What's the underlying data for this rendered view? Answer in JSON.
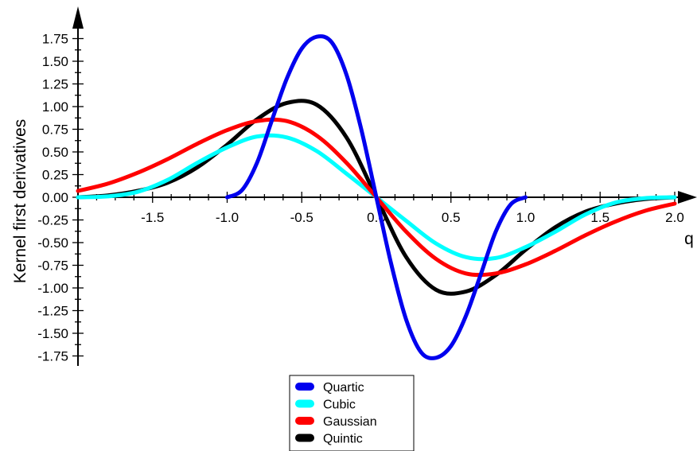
{
  "chart_data": {
    "type": "line",
    "xlabel": "q",
    "ylabel": "Kernel first derivatives",
    "xlim": [
      -2.0,
      2.0
    ],
    "ylim": [
      -1.75,
      1.75
    ],
    "x_tick_labels": [
      "-1.5",
      "-1.0",
      "-0.5",
      "0.0",
      "0.5",
      "1.0",
      "1.5",
      "2.0"
    ],
    "x_tick_values": [
      -1.5,
      -1.0,
      -0.5,
      0.0,
      0.5,
      1.0,
      1.5,
      2.0
    ],
    "y_tick_labels": [
      "1.75",
      "1.50",
      "1.25",
      "1.00",
      "0.75",
      "0.50",
      "0.25",
      "0.00",
      "-0.25",
      "-0.50",
      "-0.75",
      "-1.00",
      "-1.25",
      "-1.50",
      "-1.75"
    ],
    "y_tick_values": [
      1.75,
      1.5,
      1.25,
      1.0,
      0.75,
      0.5,
      0.25,
      0.0,
      -0.25,
      -0.5,
      -0.75,
      -1.0,
      -1.25,
      -1.5,
      -1.75
    ],
    "legend_position": "bottom-center",
    "grid": false,
    "series": [
      {
        "name": "Quartic",
        "color": "#0000ee",
        "x": [
          -1.0,
          -0.9,
          -0.8,
          -0.7,
          -0.6,
          -0.5,
          -0.4,
          -0.3,
          -0.2,
          -0.1,
          0.0,
          0.1,
          0.2,
          0.3,
          0.4,
          0.5,
          0.6,
          0.7,
          0.8,
          0.9,
          1.0
        ],
        "y": [
          0.0,
          0.08,
          0.38,
          0.85,
          1.31,
          1.64,
          1.77,
          1.71,
          1.35,
          0.74,
          0.0,
          -0.74,
          -1.35,
          -1.71,
          -1.77,
          -1.64,
          -1.31,
          -0.85,
          -0.38,
          -0.08,
          0.0
        ]
      },
      {
        "name": "Cubic",
        "color": "#00ffff",
        "x": [
          -2.0,
          -1.8,
          -1.6,
          -1.4,
          -1.2,
          -1.0,
          -0.8,
          -0.6,
          -0.4,
          -0.2,
          0.0,
          0.2,
          0.4,
          0.6,
          0.8,
          1.0,
          1.2,
          1.4,
          1.6,
          1.8,
          2.0
        ],
        "y": [
          0.0,
          0.01,
          0.06,
          0.19,
          0.38,
          0.55,
          0.67,
          0.66,
          0.51,
          0.26,
          0.0,
          -0.26,
          -0.51,
          -0.66,
          -0.67,
          -0.55,
          -0.38,
          -0.19,
          -0.06,
          -0.01,
          0.0
        ]
      },
      {
        "name": "Gaussian",
        "color": "#ff0000",
        "x": [
          -2.0,
          -1.8,
          -1.6,
          -1.4,
          -1.2,
          -1.0,
          -0.8,
          -0.6,
          -0.4,
          -0.2,
          0.0,
          0.2,
          0.4,
          0.6,
          0.8,
          1.0,
          1.2,
          1.4,
          1.6,
          1.8,
          2.0
        ],
        "y": [
          0.07,
          0.15,
          0.27,
          0.42,
          0.59,
          0.74,
          0.84,
          0.84,
          0.68,
          0.38,
          0.0,
          -0.38,
          -0.68,
          -0.84,
          -0.84,
          -0.74,
          -0.59,
          -0.42,
          -0.27,
          -0.15,
          -0.07
        ]
      },
      {
        "name": "Quintic",
        "color": "#000000",
        "x": [
          -2.0,
          -1.8,
          -1.6,
          -1.4,
          -1.2,
          -1.0,
          -0.8,
          -0.6,
          -0.4,
          -0.2,
          0.0,
          0.2,
          0.4,
          0.6,
          0.8,
          1.0,
          1.2,
          1.4,
          1.6,
          1.8,
          2.0
        ],
        "y": [
          0.0,
          0.02,
          0.07,
          0.16,
          0.33,
          0.58,
          0.86,
          1.04,
          1.02,
          0.66,
          0.0,
          -0.66,
          -1.02,
          -1.04,
          -0.86,
          -0.58,
          -0.33,
          -0.16,
          -0.07,
          -0.02,
          0.0
        ]
      }
    ]
  }
}
